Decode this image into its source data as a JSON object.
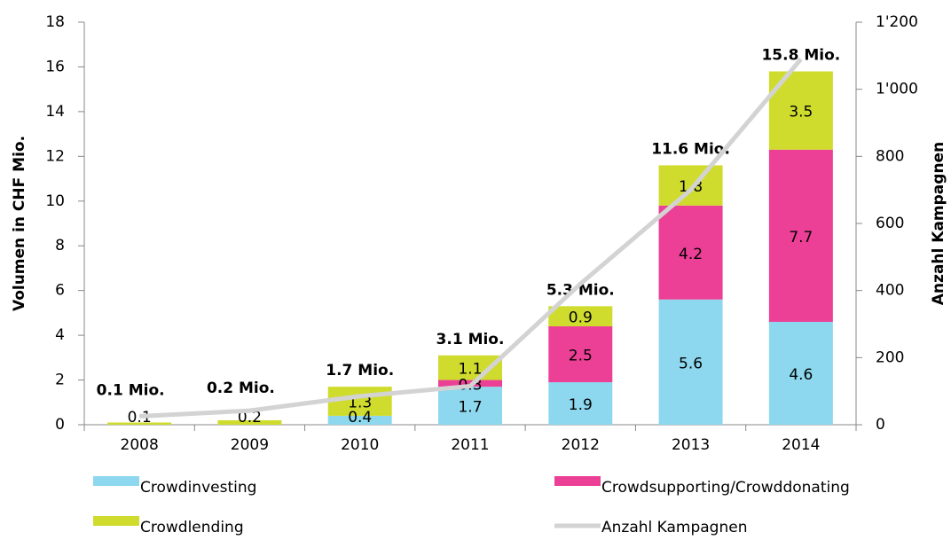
{
  "chart_data": {
    "type": "bar",
    "stacked": true,
    "categories": [
      "2008",
      "2009",
      "2010",
      "2011",
      "2012",
      "2013",
      "2014"
    ],
    "series": [
      {
        "name": "Crowdinvesting",
        "color": "#8dd8ee",
        "values": [
          null,
          null,
          0.4,
          1.7,
          1.9,
          5.6,
          4.6
        ]
      },
      {
        "name": "Crowdsupporting/Crowddonating",
        "color": "#ec3f96",
        "values": [
          null,
          null,
          null,
          0.3,
          2.5,
          4.2,
          7.7
        ]
      },
      {
        "name": "Crowdlending",
        "color": "#cfdc2e",
        "values": [
          0.1,
          0.2,
          1.3,
          1.1,
          0.9,
          1.8,
          3.5
        ]
      },
      {
        "name": "Anzahl Kampagnen",
        "color": "#d3d3d3",
        "type": "line",
        "axis": "y2",
        "values": [
          25,
          42,
          85,
          115,
          420,
          700,
          1090
        ]
      }
    ],
    "annotations": [
      "0.1 Mio.",
      "0.2 Mio.",
      "1.7 Mio.",
      "3.1 Mio.",
      "5.3 Mio.",
      "11.6 Mio.",
      "15.8 Mio."
    ],
    "ylabel": "Volumen in CHF Mio.",
    "y2label": "Anzahl Kampagnen",
    "ylim": [
      0,
      18
    ],
    "yticks": [
      0,
      2,
      4,
      6,
      8,
      10,
      12,
      14,
      16,
      18
    ],
    "y2lim": [
      0,
      1200
    ],
    "y2ticks": [
      0,
      200,
      400,
      600,
      800,
      {
        "value": 1000,
        "label": "1'000"
      },
      {
        "value": 1200,
        "label": "1'200"
      }
    ],
    "legend": "bottom"
  }
}
